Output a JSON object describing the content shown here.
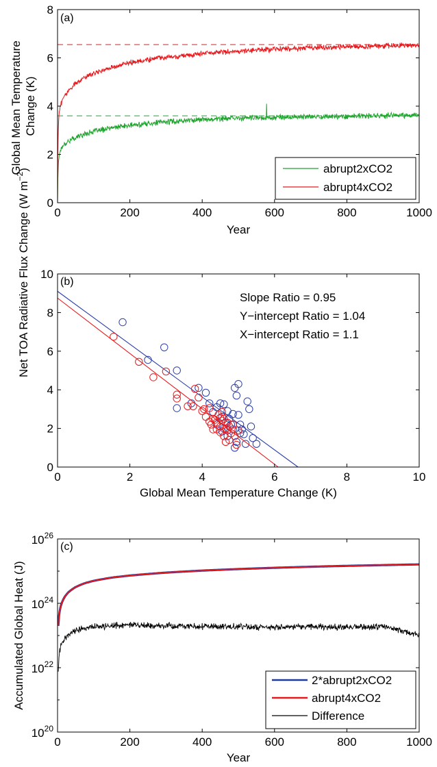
{
  "chart_data": [
    {
      "panel_label": "(a)",
      "type": "line",
      "xlabel": "Year",
      "ylabel": "Global Mean Temperature Change (K)",
      "ylabel_lines": [
        "Global Mean Temperature",
        "Change (K)"
      ],
      "xlim": [
        0,
        1000
      ],
      "ylim": [
        0,
        8
      ],
      "xticks": [
        0,
        200,
        400,
        600,
        800,
        1000
      ],
      "yticks": [
        0,
        2,
        4,
        6,
        8
      ],
      "legend_position": "bottom-right",
      "series": [
        {
          "name": "abrupt2xCO2",
          "color": "#1fa52e",
          "x": [
            0,
            1,
            2,
            3,
            5,
            8,
            12,
            20,
            30,
            50,
            75,
            100,
            150,
            200,
            250,
            300,
            400,
            500,
            600,
            700,
            800,
            900,
            1000
          ],
          "y": [
            0,
            1.0,
            1.5,
            1.75,
            2.0,
            2.2,
            2.3,
            2.45,
            2.55,
            2.7,
            2.85,
            2.95,
            3.1,
            3.2,
            3.28,
            3.35,
            3.45,
            3.5,
            3.53,
            3.56,
            3.58,
            3.6,
            3.62
          ],
          "reference_line": 3.6
        },
        {
          "name": "abrupt4xCO2",
          "color": "#e8191c",
          "x": [
            0,
            1,
            2,
            3,
            5,
            8,
            12,
            20,
            30,
            50,
            75,
            100,
            150,
            200,
            250,
            300,
            400,
            500,
            600,
            700,
            800,
            900,
            1000
          ],
          "y": [
            0,
            2.2,
            3.0,
            3.4,
            3.8,
            4.0,
            4.2,
            4.45,
            4.65,
            4.95,
            5.2,
            5.35,
            5.6,
            5.8,
            5.93,
            6.03,
            6.18,
            6.28,
            6.36,
            6.42,
            6.46,
            6.5,
            6.52
          ],
          "reference_line": 6.55
        }
      ]
    },
    {
      "panel_label": "(b)",
      "type": "scatter",
      "xlabel": "Global Mean Temperature Change (K)",
      "ylabel": "Net TOA Radiative Flux Change (W m",
      "ylabel_sup": "−2",
      "ylabel_tail": ")",
      "xlim": [
        0,
        10
      ],
      "ylim": [
        0,
        10
      ],
      "xticks": [
        0,
        2,
        4,
        6,
        8,
        10
      ],
      "yticks": [
        0,
        2,
        4,
        6,
        8,
        10
      ],
      "annotations": [
        "Slope Ratio = 0.95",
        "Y−intercept Ratio = 1.04",
        "X−intercept Ratio = 1.1"
      ],
      "series": [
        {
          "color": "#2b3ea8",
          "points": [
            [
              1.8,
              7.5
            ],
            [
              2.5,
              5.55
            ],
            [
              2.95,
              6.2
            ],
            [
              3.3,
              5.0
            ],
            [
              3.3,
              3.05
            ],
            [
              3.7,
              3.3
            ],
            [
              3.9,
              4.1
            ],
            [
              4.1,
              3.85
            ],
            [
              4.2,
              3.3
            ],
            [
              4.4,
              3.1
            ],
            [
              4.5,
              3.3
            ],
            [
              4.55,
              2.6
            ],
            [
              4.6,
              3.25
            ],
            [
              4.7,
              2.9
            ],
            [
              4.75,
              2.5
            ],
            [
              4.8,
              2.2
            ],
            [
              4.85,
              2.75
            ],
            [
              4.9,
              4.1
            ],
            [
              4.95,
              3.7
            ],
            [
              5.0,
              4.3
            ],
            [
              5.0,
              2.7
            ],
            [
              5.05,
              2.2
            ],
            [
              5.1,
              1.95
            ],
            [
              5.15,
              1.7
            ],
            [
              5.2,
              1.2
            ],
            [
              5.25,
              3.4
            ],
            [
              5.3,
              3.0
            ],
            [
              5.35,
              2.1
            ],
            [
              5.4,
              1.5
            ],
            [
              5.5,
              1.2
            ],
            [
              4.6,
              2.0
            ],
            [
              4.7,
              1.6
            ],
            [
              4.85,
              1.95
            ],
            [
              4.95,
              1.3
            ],
            [
              4.9,
              1.0
            ],
            [
              4.4,
              2.2
            ],
            [
              4.3,
              2.85
            ],
            [
              4.65,
              2.3
            ],
            [
              5.05,
              1.75
            ],
            [
              4.55,
              1.85
            ]
          ],
          "fit": [
            [
              0,
              9.1
            ],
            [
              6.65,
              0
            ]
          ]
        },
        {
          "color": "#e8191c",
          "points": [
            [
              1.55,
              6.75
            ],
            [
              2.25,
              5.45
            ],
            [
              2.65,
              4.65
            ],
            [
              3.0,
              4.95
            ],
            [
              3.3,
              3.75
            ],
            [
              3.3,
              3.55
            ],
            [
              3.6,
              3.15
            ],
            [
              3.75,
              3.15
            ],
            [
              3.8,
              4.05
            ],
            [
              3.9,
              3.6
            ],
            [
              4.0,
              2.9
            ],
            [
              4.05,
              3.0
            ],
            [
              4.1,
              2.6
            ],
            [
              4.2,
              3.05
            ],
            [
              4.25,
              2.2
            ],
            [
              4.3,
              2.5
            ],
            [
              4.35,
              2.45
            ],
            [
              4.4,
              2.3
            ],
            [
              4.4,
              1.95
            ],
            [
              4.45,
              2.7
            ],
            [
              4.5,
              2.1
            ],
            [
              4.5,
              1.8
            ],
            [
              4.55,
              2.4
            ],
            [
              4.6,
              1.6
            ],
            [
              4.6,
              2.5
            ],
            [
              4.65,
              2.0
            ],
            [
              4.7,
              1.9
            ],
            [
              4.7,
              2.3
            ],
            [
              4.75,
              1.4
            ],
            [
              4.8,
              1.75
            ],
            [
              4.85,
              2.2
            ],
            [
              4.9,
              1.6
            ],
            [
              4.95,
              1.15
            ],
            [
              4.5,
              2.55
            ],
            [
              4.3,
              1.95
            ],
            [
              4.55,
              2.85
            ],
            [
              4.2,
              2.35
            ],
            [
              4.75,
              2.1
            ],
            [
              4.65,
              1.3
            ],
            [
              5.0,
              1.9
            ]
          ],
          "fit": [
            [
              0,
              8.75
            ],
            [
              6.1,
              0
            ]
          ]
        }
      ]
    },
    {
      "panel_label": "(c)",
      "type": "line",
      "xlabel": "Year",
      "ylabel": "Accumulated Global Heat (J)",
      "xlim": [
        0,
        1000
      ],
      "yscale": "log",
      "ylim": [
        1e+20,
        1e+26
      ],
      "xticks": [
        0,
        200,
        400,
        600,
        800,
        1000
      ],
      "yticks": [
        "10^20",
        "10^22",
        "10^24",
        "10^26"
      ],
      "ytick_base": "10",
      "ytick_exponents": [
        "20",
        "22",
        "24",
        "26"
      ],
      "legend_position": "bottom-right",
      "series": [
        {
          "name": "2*abrupt2xCO2",
          "color": "#1d3b9e",
          "x": [
            2,
            5,
            10,
            20,
            30,
            50,
            75,
            100,
            150,
            200,
            300,
            400,
            500,
            600,
            700,
            800,
            900,
            1000
          ],
          "y": [
            2e+23,
            5e+23,
            9e+23,
            1.6e+24,
            2.2e+24,
            3.2e+24,
            4.2e+24,
            5e+24,
            6.3e+24,
            7.3e+24,
            9e+24,
            1.04e+25,
            1.16e+25,
            1.27e+25,
            1.37e+25,
            1.46e+25,
            1.54e+25,
            1.62e+25
          ]
        },
        {
          "name": "abrupt4xCO2",
          "color": "#e8191c",
          "x": [
            2,
            5,
            10,
            20,
            30,
            50,
            75,
            100,
            150,
            200,
            300,
            400,
            500,
            600,
            700,
            800,
            900,
            1000
          ],
          "y": [
            2e+23,
            5e+23,
            9e+23,
            1.6e+24,
            2.2e+24,
            3.2e+24,
            4.2e+24,
            5e+24,
            6.3e+24,
            7.3e+24,
            9e+24,
            1.04e+25,
            1.16e+25,
            1.27e+25,
            1.37e+25,
            1.46e+25,
            1.54e+25,
            1.62e+25
          ]
        },
        {
          "name": "Difference",
          "color": "#000000",
          "x": [
            2,
            5,
            10,
            20,
            30,
            50,
            75,
            100,
            150,
            200,
            300,
            400,
            500,
            600,
            700,
            800,
            900,
            1000
          ],
          "y": [
            8e+21,
            3e+22,
            5e+22,
            8e+22,
            1.1e+23,
            1.5e+23,
            1.7e+23,
            1.9e+23,
            2e+23,
            2.1e+23,
            2e+23,
            1.9e+23,
            1.9e+23,
            1.8e+23,
            1.9e+23,
            1.8e+23,
            1.9e+23,
            1e+23
          ]
        }
      ]
    }
  ]
}
